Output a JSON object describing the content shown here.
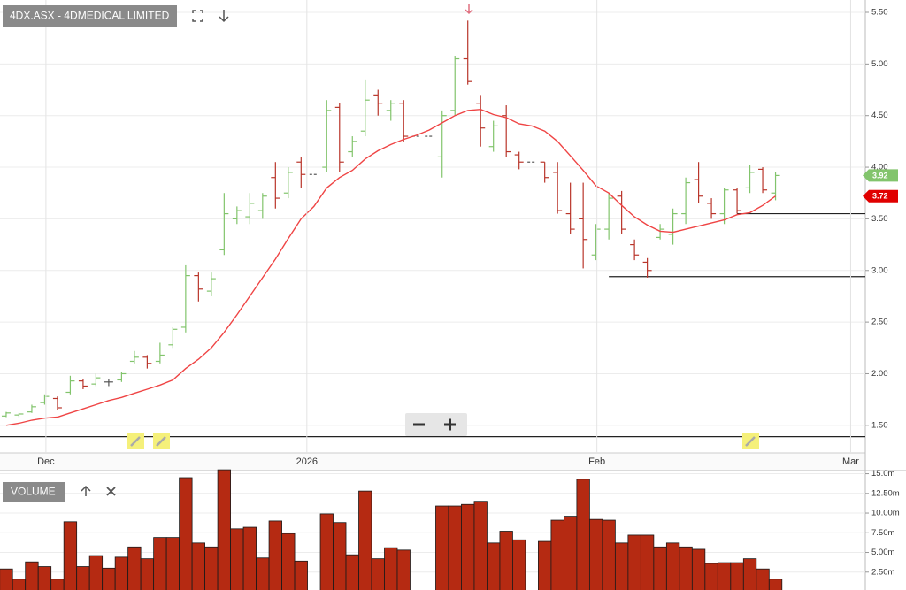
{
  "chart_data": [
    {
      "type": "ohlc",
      "title": "4DX.ASX - 4DMEDICAL LIMITED",
      "x": [
        0,
        1,
        2,
        3,
        4,
        5,
        6,
        7,
        8,
        9,
        10,
        11,
        12,
        13,
        14,
        15,
        16,
        17,
        18,
        19,
        20,
        21,
        22,
        23,
        24,
        25,
        26,
        27,
        28,
        29,
        30,
        31,
        32,
        33,
        34,
        35,
        36,
        37,
        38,
        39,
        40,
        41,
        42,
        43,
        44,
        45,
        46,
        47,
        48,
        49,
        50,
        51,
        52,
        53,
        54,
        55,
        56,
        57,
        58,
        59,
        60
      ],
      "open": [
        1.59,
        1.6,
        1.63,
        1.72,
        1.76,
        1.82,
        1.93,
        1.9,
        1.92,
        1.94,
        2.12,
        2.16,
        2.12,
        2.28,
        2.45,
        2.95,
        2.8,
        3.2,
        3.5,
        3.52,
        3.58,
        3.9,
        3.75,
        4.05,
        3.93,
        4.0,
        4.58,
        4.15,
        4.35,
        4.7,
        4.55,
        4.62,
        4.3,
        4.3,
        4.1,
        4.55,
        5.05,
        4.62,
        4.2,
        4.5,
        4.12,
        4.05,
        4.05,
        3.95,
        3.55,
        3.5,
        3.15,
        3.4,
        3.72,
        3.25,
        3.08,
        3.32,
        3.35,
        3.55,
        3.88,
        3.65,
        3.55,
        3.78,
        3.8,
        3.98,
        3.75
      ],
      "high": [
        1.63,
        1.62,
        1.7,
        1.8,
        1.78,
        1.98,
        1.95,
        2.0,
        1.95,
        2.02,
        2.22,
        2.18,
        2.3,
        2.45,
        3.05,
        2.98,
        2.98,
        3.75,
        3.62,
        3.75,
        3.75,
        4.05,
        4.0,
        4.1,
        3.93,
        4.65,
        4.62,
        4.3,
        4.85,
        4.75,
        4.65,
        4.65,
        4.3,
        4.3,
        4.55,
        5.08,
        5.42,
        4.7,
        4.45,
        4.6,
        4.15,
        4.05,
        4.05,
        4.05,
        3.85,
        3.85,
        3.45,
        3.75,
        3.77,
        3.3,
        3.12,
        3.45,
        3.6,
        3.9,
        4.05,
        3.7,
        3.8,
        3.8,
        4.02,
        4.0,
        3.95
      ],
      "low": [
        1.58,
        1.58,
        1.62,
        1.7,
        1.65,
        1.8,
        1.85,
        1.88,
        1.88,
        1.92,
        2.1,
        2.05,
        2.1,
        2.25,
        2.4,
        2.7,
        2.75,
        3.15,
        3.45,
        3.45,
        3.5,
        3.6,
        3.7,
        3.8,
        3.93,
        3.95,
        3.95,
        4.1,
        4.3,
        4.5,
        4.45,
        4.25,
        4.3,
        4.3,
        3.9,
        4.5,
        4.8,
        4.2,
        4.15,
        4.1,
        3.98,
        4.05,
        3.85,
        3.55,
        3.35,
        3.02,
        3.1,
        3.3,
        3.35,
        3.1,
        2.93,
        3.3,
        3.25,
        3.45,
        3.65,
        3.5,
        3.45,
        3.55,
        3.75,
        3.75,
        3.68
      ],
      "close": [
        1.62,
        1.61,
        1.68,
        1.78,
        1.67,
        1.93,
        1.88,
        1.96,
        1.92,
        2.0,
        2.16,
        2.1,
        2.18,
        2.43,
        2.95,
        2.82,
        2.92,
        3.55,
        3.58,
        3.65,
        3.72,
        3.7,
        3.95,
        3.93,
        3.93,
        4.55,
        4.05,
        4.25,
        4.65,
        4.62,
        4.62,
        4.3,
        4.3,
        4.3,
        4.5,
        5.05,
        4.83,
        4.38,
        4.4,
        4.15,
        4.05,
        4.05,
        3.9,
        3.58,
        3.4,
        3.3,
        3.4,
        3.7,
        3.4,
        3.15,
        3.0,
        3.4,
        3.55,
        3.85,
        3.72,
        3.55,
        3.78,
        3.58,
        3.95,
        3.78,
        3.92
      ],
      "up_color": "#82c46c",
      "down_color": "#b9352a",
      "flat_color": "#555555",
      "ma": {
        "color": "#ef4444",
        "values": [
          1.5,
          1.52,
          1.55,
          1.57,
          1.58,
          1.62,
          1.66,
          1.7,
          1.74,
          1.77,
          1.81,
          1.85,
          1.89,
          1.94,
          2.05,
          2.14,
          2.25,
          2.4,
          2.57,
          2.75,
          2.93,
          3.11,
          3.31,
          3.5,
          3.62,
          3.8,
          3.9,
          3.97,
          4.08,
          4.16,
          4.22,
          4.27,
          4.31,
          4.36,
          4.43,
          4.5,
          4.55,
          4.56,
          4.51,
          4.48,
          4.42,
          4.4,
          4.35,
          4.25,
          4.11,
          3.97,
          3.82,
          3.75,
          3.63,
          3.52,
          3.44,
          3.38,
          3.37,
          3.4,
          3.43,
          3.46,
          3.49,
          3.54,
          3.56,
          3.63,
          3.72
        ]
      },
      "levels": [
        {
          "value": 3.55,
          "x0": 57
        },
        {
          "value": 2.94,
          "x0": 47
        },
        {
          "value": 1.39,
          "x0": -0.48
        }
      ],
      "xlim": [
        -0.48,
        67
      ],
      "xticks": [
        {
          "value": 3.1,
          "label": "Dec"
        },
        {
          "value": 23.45,
          "label": "2026"
        },
        {
          "value": 46.07,
          "label": "Feb"
        },
        {
          "value": 65.86,
          "label": "Mar"
        }
      ],
      "ylim": [
        1.25,
        5.62
      ],
      "yticks": [
        {
          "value": 1.5,
          "label": "1.50"
        },
        {
          "value": 2,
          "label": "2.00"
        },
        {
          "value": 2.5,
          "label": "2.50"
        },
        {
          "value": 3,
          "label": "3.00"
        },
        {
          "value": 3.5,
          "label": "3.50"
        },
        {
          "value": 4,
          "label": "4.00"
        },
        {
          "value": 4.5,
          "label": "4.50"
        },
        {
          "value": 5,
          "label": "5.00"
        },
        {
          "value": 5.5,
          "label": "5.50"
        }
      ],
      "grid": true
    },
    {
      "type": "bar",
      "title": "VOLUME",
      "color": "#b52a12",
      "x": [
        0,
        1,
        2,
        3,
        4,
        5,
        6,
        7,
        8,
        9,
        10,
        11,
        12,
        13,
        14,
        15,
        16,
        17,
        18,
        19,
        20,
        21,
        22,
        23,
        24,
        25,
        26,
        27,
        28,
        29,
        30,
        31,
        32,
        33,
        34,
        35,
        36,
        37,
        38,
        39,
        40,
        41,
        42,
        43,
        44,
        45,
        46,
        47,
        48,
        49,
        50,
        51,
        52,
        53,
        54,
        55,
        56,
        57,
        58,
        59,
        60
      ],
      "values": [
        2.9,
        1.6,
        3.8,
        3.2,
        1.6,
        8.9,
        3.2,
        4.6,
        3.0,
        4.4,
        5.7,
        4.2,
        6.9,
        6.9,
        14.5,
        6.2,
        5.7,
        15.5,
        8.0,
        8.2,
        4.3,
        9.0,
        7.4,
        3.9,
        null,
        9.9,
        8.8,
        4.7,
        12.8,
        4.2,
        5.6,
        5.3,
        null,
        null,
        10.9,
        10.9,
        11.1,
        11.5,
        6.2,
        7.7,
        6.6,
        null,
        6.4,
        9.1,
        9.6,
        14.3,
        9.2,
        9.1,
        6.2,
        7.2,
        7.2,
        5.7,
        6.2,
        5.7,
        5.4,
        3.6,
        3.7,
        3.7,
        4.2,
        2.9,
        1.6
      ],
      "xlim": [
        -0.48,
        67
      ],
      "ylim": [
        0,
        15.4
      ],
      "yticks": [
        {
          "value": 2.5,
          "label": "2.50m"
        },
        {
          "value": 5,
          "label": "5.00m"
        },
        {
          "value": 7.5,
          "label": "7.50m"
        },
        {
          "value": 10,
          "label": "10.00m"
        },
        {
          "value": 12.5,
          "label": "12.50m"
        },
        {
          "value": 15,
          "label": "15.0m"
        }
      ],
      "grid": true
    }
  ]
}
